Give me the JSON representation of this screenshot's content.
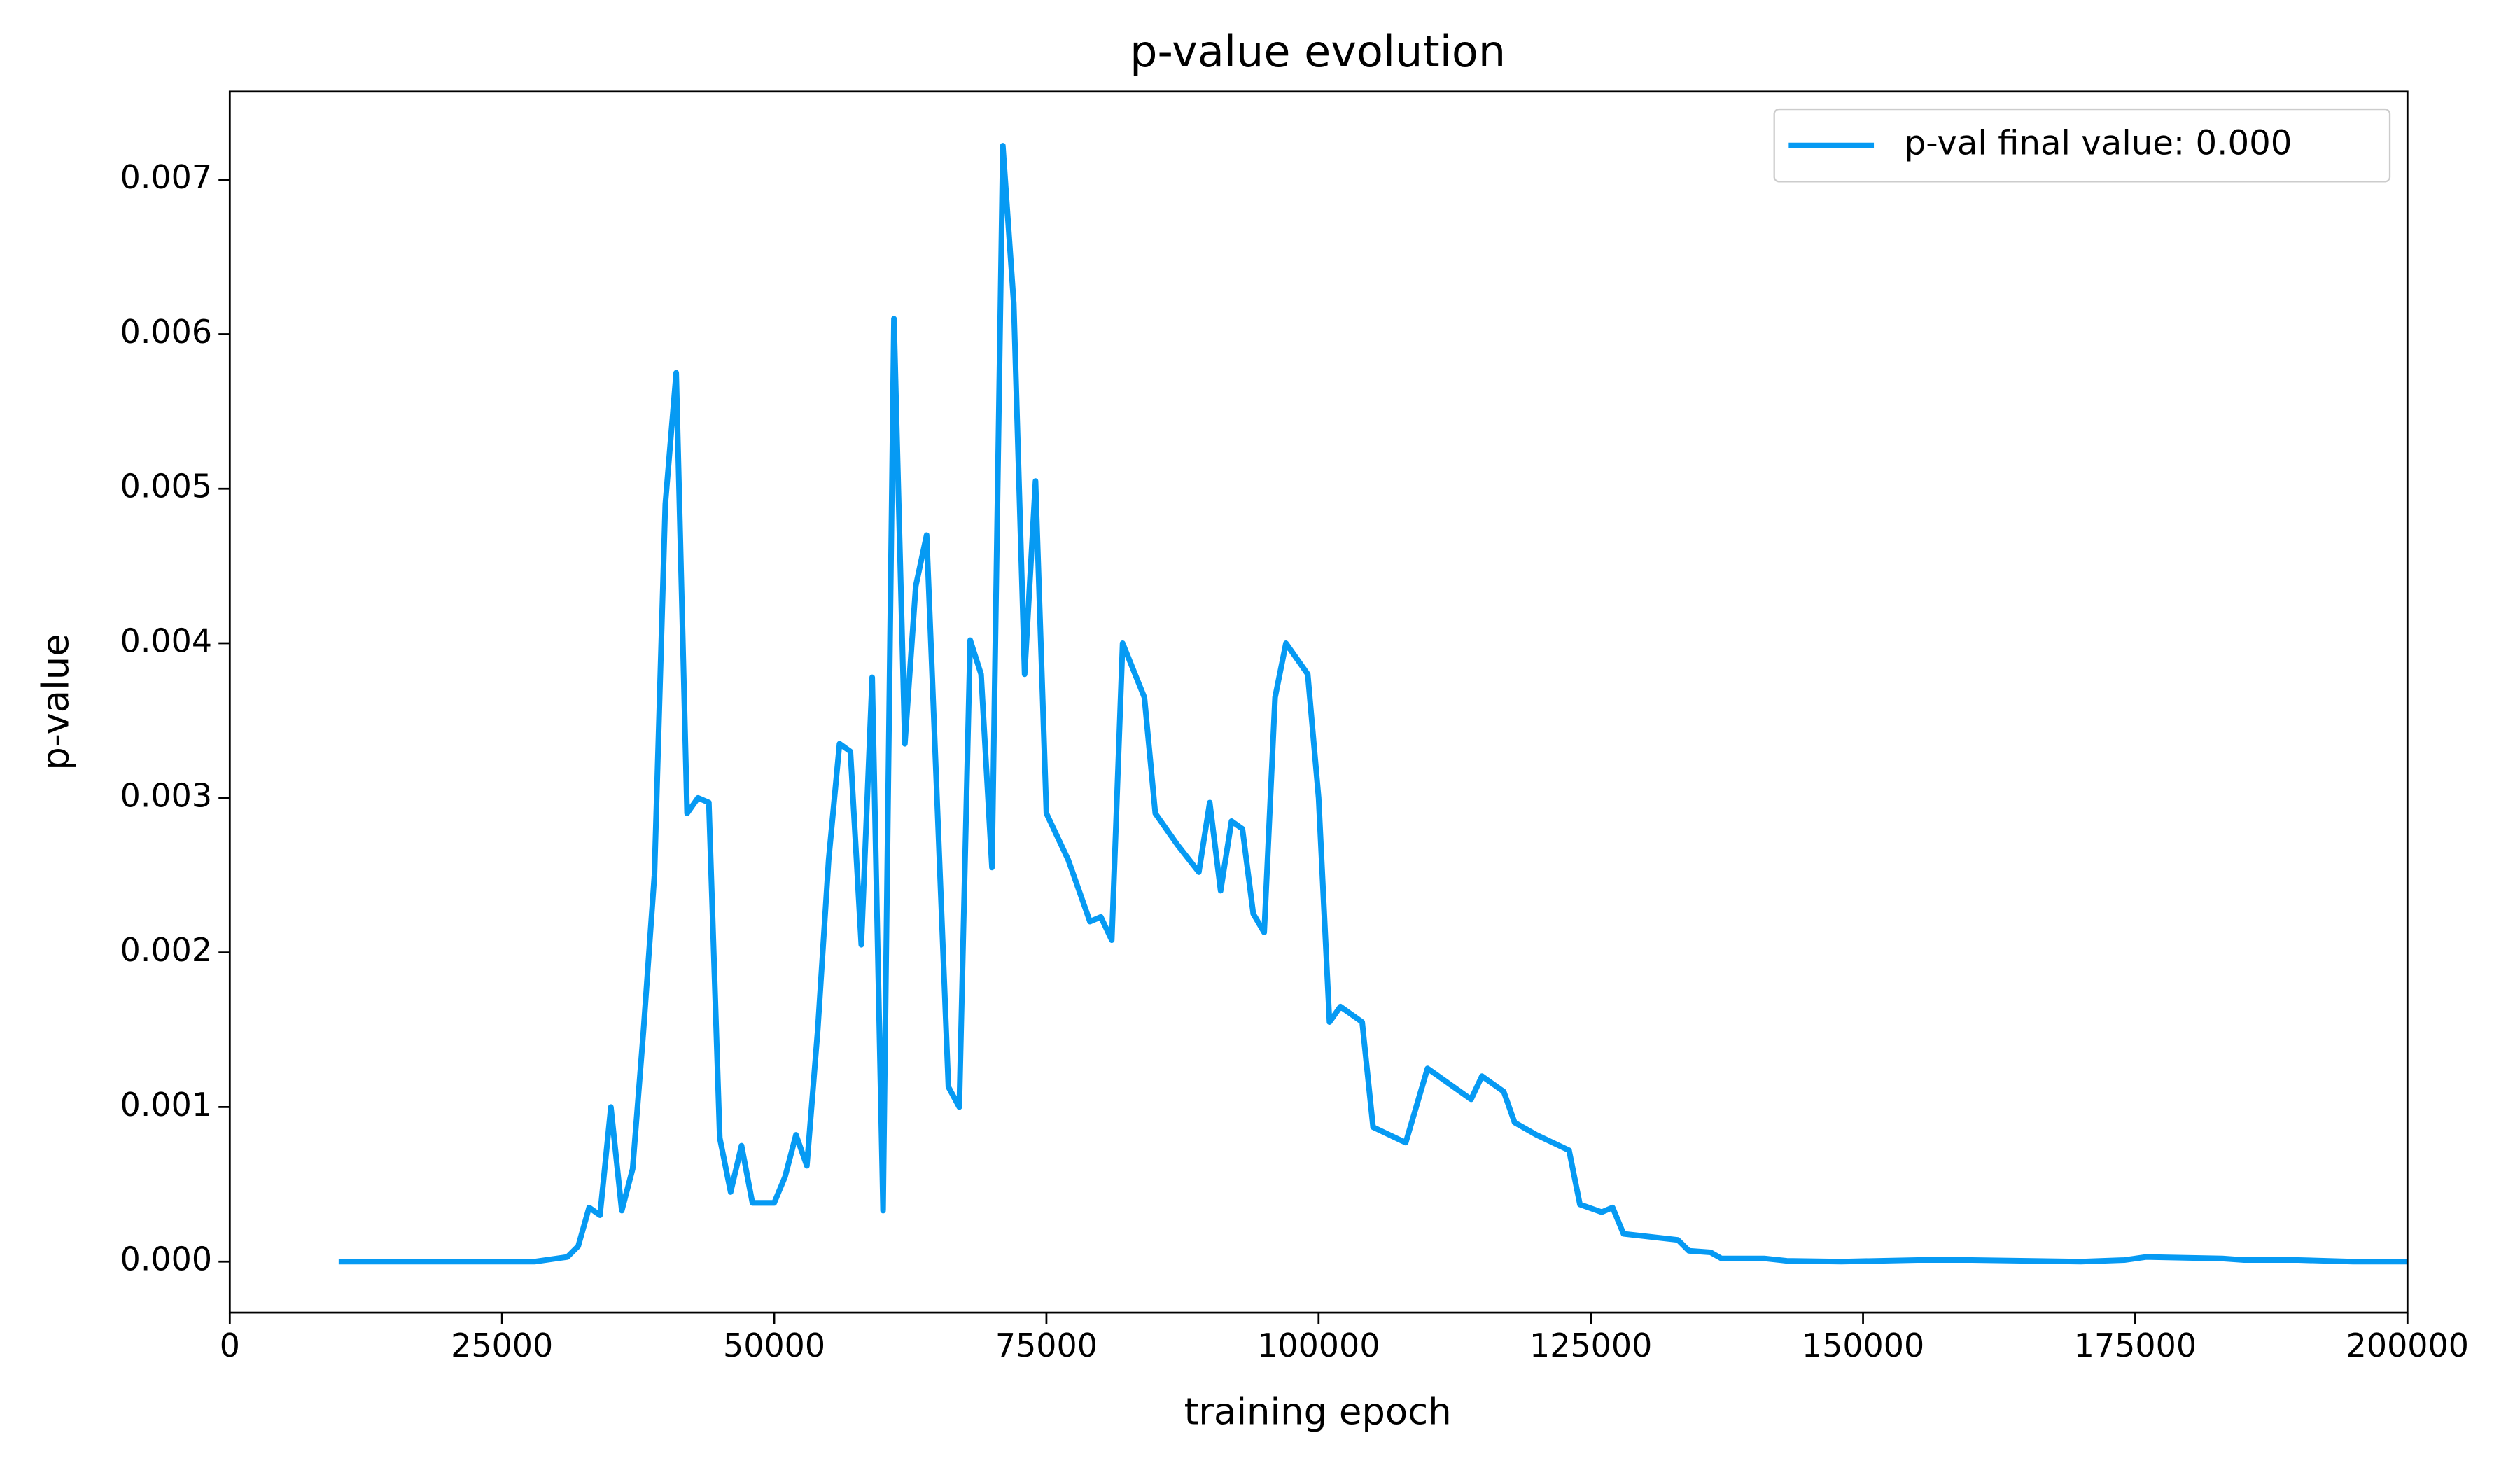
{
  "chart_data": {
    "type": "line",
    "title": "p-value evolution",
    "x_label": "training epoch",
    "y_label": "p-value",
    "x": [
      10000,
      28000,
      30000,
      31000,
      32000,
      33000,
      34000,
      35000,
      36000,
      37000,
      38000,
      39000,
      40000,
      41000,
      42000,
      43000,
      44000,
      45000,
      46000,
      47000,
      48000,
      50000,
      51000,
      52000,
      53000,
      54000,
      55000,
      56000,
      57000,
      58000,
      59000,
      60000,
      61000,
      62000,
      63000,
      64000,
      66000,
      67000,
      68000,
      69000,
      70000,
      71000,
      72000,
      73000,
      74000,
      75000,
      77000,
      79000,
      80000,
      81000,
      82000,
      84000,
      85000,
      87000,
      89000,
      90000,
      91000,
      92000,
      93000,
      94000,
      95000,
      96000,
      97000,
      99000,
      100000,
      101000,
      102000,
      104000,
      105000,
      108000,
      110000,
      114000,
      115000,
      117000,
      118000,
      120000,
      123000,
      124000,
      126000,
      127000,
      128000,
      133000,
      134000,
      136000,
      137000,
      141000,
      143000,
      148000,
      155000,
      160000,
      170000,
      174000,
      176000,
      183000,
      185000,
      190000,
      195000,
      200000
    ],
    "series": [
      {
        "name": "p-val final value: 0.000",
        "color": "#069af3",
        "values": [
          0,
          0,
          2e-05,
          3e-05,
          0.0001,
          0.00035,
          0.0003,
          0.001,
          0.00033,
          0.0006,
          0.0015,
          0.0025,
          0.0049,
          0.00575,
          0.0029,
          0.003,
          0.00297,
          0.0008,
          0.00045,
          0.00075,
          0.00038,
          0.00038,
          0.00055,
          0.00082,
          0.00062,
          0.0015,
          0.0026,
          0.00335,
          0.0033,
          0.00205,
          0.00378,
          0.00033,
          0.0061,
          0.00335,
          0.00437,
          0.0047,
          0.00113,
          0.001,
          0.00402,
          0.0038,
          0.00255,
          0.00722,
          0.0062,
          0.0038,
          0.00505,
          0.0029,
          0.0026,
          0.0022,
          0.00223,
          0.00208,
          0.004,
          0.00365,
          0.0029,
          0.0027,
          0.00252,
          0.00297,
          0.0024,
          0.00285,
          0.0028,
          0.00225,
          0.00213,
          0.00365,
          0.004,
          0.0038,
          0.003,
          0.00155,
          0.00165,
          0.00155,
          0.00087,
          0.00077,
          0.00125,
          0.00105,
          0.0012,
          0.0011,
          0.0009,
          0.00082,
          0.00072,
          0.00037,
          0.00032,
          0.00035,
          0.00018,
          0.00014,
          7e-05,
          6e-05,
          2e-05,
          2e-05,
          5e-06,
          0,
          1e-05,
          1e-05,
          0,
          1e-05,
          3e-05,
          2e-05,
          1e-05,
          1e-05,
          0,
          0
        ]
      }
    ],
    "xlim": [
      0,
      200000
    ],
    "ylim": [
      -0.00033,
      0.00757
    ],
    "xticks": [
      0,
      25000,
      50000,
      75000,
      100000,
      125000,
      150000,
      175000,
      200000
    ],
    "yticks": [
      {
        "value": 0,
        "label": "0.000"
      },
      {
        "value": 0.001,
        "label": "0.001"
      },
      {
        "value": 0.002,
        "label": "0.002"
      },
      {
        "value": 0.003,
        "label": "0.003"
      },
      {
        "value": 0.004,
        "label": "0.004"
      },
      {
        "value": 0.005,
        "label": "0.005"
      },
      {
        "value": 0.006,
        "label": "0.006"
      },
      {
        "value": 0.007,
        "label": "0.007"
      }
    ],
    "legend": "upper right"
  }
}
